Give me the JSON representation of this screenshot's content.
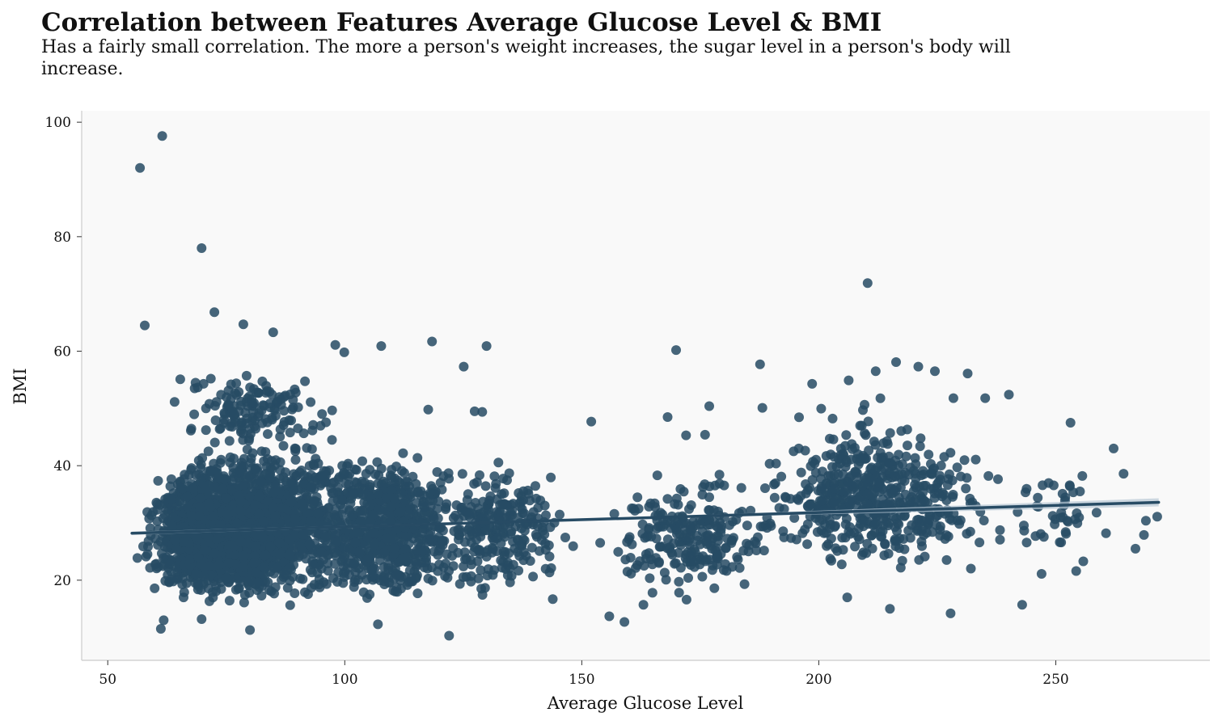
{
  "chart_data": {
    "type": "scatter",
    "title": "Correlation between Features Average Glucose Level & BMI",
    "subtitle": "Has a fairly small correlation. The more a person's weight increases, the sugar level in a person's body will increase.",
    "xlabel": "Average Glucose Level",
    "ylabel": "BMI",
    "xlim": [
      44.5,
      282.5
    ],
    "ylim": [
      6,
      102
    ],
    "xticks": [
      50,
      100,
      150,
      200,
      250
    ],
    "yticks": [
      20,
      40,
      60,
      80,
      100
    ],
    "grid": false,
    "colors": {
      "point": "#274b64",
      "plot_bg": "#f9f9f9",
      "ci_band": "#b9c9d5"
    },
    "regression": {
      "x": [
        55.1,
        271.7
      ],
      "y": [
        28.2,
        33.6
      ]
    },
    "outliers": [
      [
        61.5,
        97.6
      ],
      [
        56.8,
        92.0
      ],
      [
        69.8,
        78.0
      ],
      [
        72.5,
        66.8
      ],
      [
        57.8,
        64.5
      ],
      [
        78.6,
        64.7
      ],
      [
        84.9,
        63.3
      ],
      [
        98.0,
        61.1
      ],
      [
        99.9,
        59.8
      ],
      [
        107.7,
        60.9
      ],
      [
        118.4,
        61.7
      ],
      [
        129.9,
        60.9
      ],
      [
        169.9,
        60.2
      ],
      [
        210.3,
        71.9
      ],
      [
        187.6,
        57.7
      ],
      [
        125.1,
        57.3
      ],
      [
        221.0,
        57.3
      ],
      [
        224.5,
        56.5
      ],
      [
        231.4,
        56.1
      ],
      [
        212.0,
        56.5
      ],
      [
        216.3,
        58.1
      ],
      [
        198.6,
        54.3
      ],
      [
        206.3,
        54.9
      ],
      [
        176.9,
        50.4
      ],
      [
        168.1,
        48.5
      ],
      [
        188.1,
        50.1
      ],
      [
        228.4,
        51.8
      ],
      [
        235.1,
        51.8
      ],
      [
        240.1,
        52.4
      ],
      [
        253.1,
        47.5
      ],
      [
        262.2,
        43.0
      ],
      [
        264.3,
        38.6
      ],
      [
        271.4,
        31.1
      ],
      [
        269.0,
        30.4
      ],
      [
        268.6,
        27.9
      ],
      [
        266.8,
        25.5
      ],
      [
        260.6,
        28.2
      ],
      [
        255.8,
        23.3
      ],
      [
        254.3,
        21.6
      ],
      [
        247.0,
        21.1
      ],
      [
        242.9,
        15.7
      ],
      [
        227.8,
        14.2
      ],
      [
        215.0,
        15.0
      ],
      [
        206.0,
        17.0
      ],
      [
        159.0,
        12.7
      ],
      [
        155.8,
        13.7
      ],
      [
        122.0,
        10.3
      ],
      [
        61.2,
        11.5
      ],
      [
        80.0,
        11.3
      ],
      [
        61.8,
        13.0
      ],
      [
        69.8,
        13.2
      ],
      [
        107.0,
        12.3
      ],
      [
        172.1,
        16.6
      ],
      [
        163.0,
        15.7
      ],
      [
        176.0,
        45.4
      ],
      [
        172.0,
        45.3
      ],
      [
        129.0,
        49.4
      ],
      [
        127.4,
        49.5
      ],
      [
        117.6,
        49.8
      ],
      [
        152.0,
        47.7
      ],
      [
        258.6,
        31.8
      ],
      [
        255.1,
        35.5
      ],
      [
        255.6,
        38.2
      ],
      [
        251.5,
        31.0
      ]
    ],
    "clusters": [
      {
        "x": [
          55,
          92
        ],
        "y": [
          15,
          42
        ],
        "n": 1550
      },
      {
        "x": [
          55,
          115
        ],
        "y": [
          14,
          47
        ],
        "n": 1000
      },
      {
        "x": [
          60,
          100
        ],
        "y": [
          42,
          57
        ],
        "n": 140
      },
      {
        "x": [
          92,
          128
        ],
        "y": [
          14,
          44
        ],
        "n": 600
      },
      {
        "x": [
          115,
          150
        ],
        "y": [
          15,
          42
        ],
        "n": 260
      },
      {
        "x": [
          150,
          195
        ],
        "y": [
          16,
          40
        ],
        "n": 230
      },
      {
        "x": [
          180,
          245
        ],
        "y": [
          20,
          48
        ],
        "n": 430
      },
      {
        "x": [
          190,
          230
        ],
        "y": [
          22,
          55
        ],
        "n": 110
      },
      {
        "x": [
          240,
          258
        ],
        "y": [
          22,
          42
        ],
        "n": 35
      }
    ]
  }
}
